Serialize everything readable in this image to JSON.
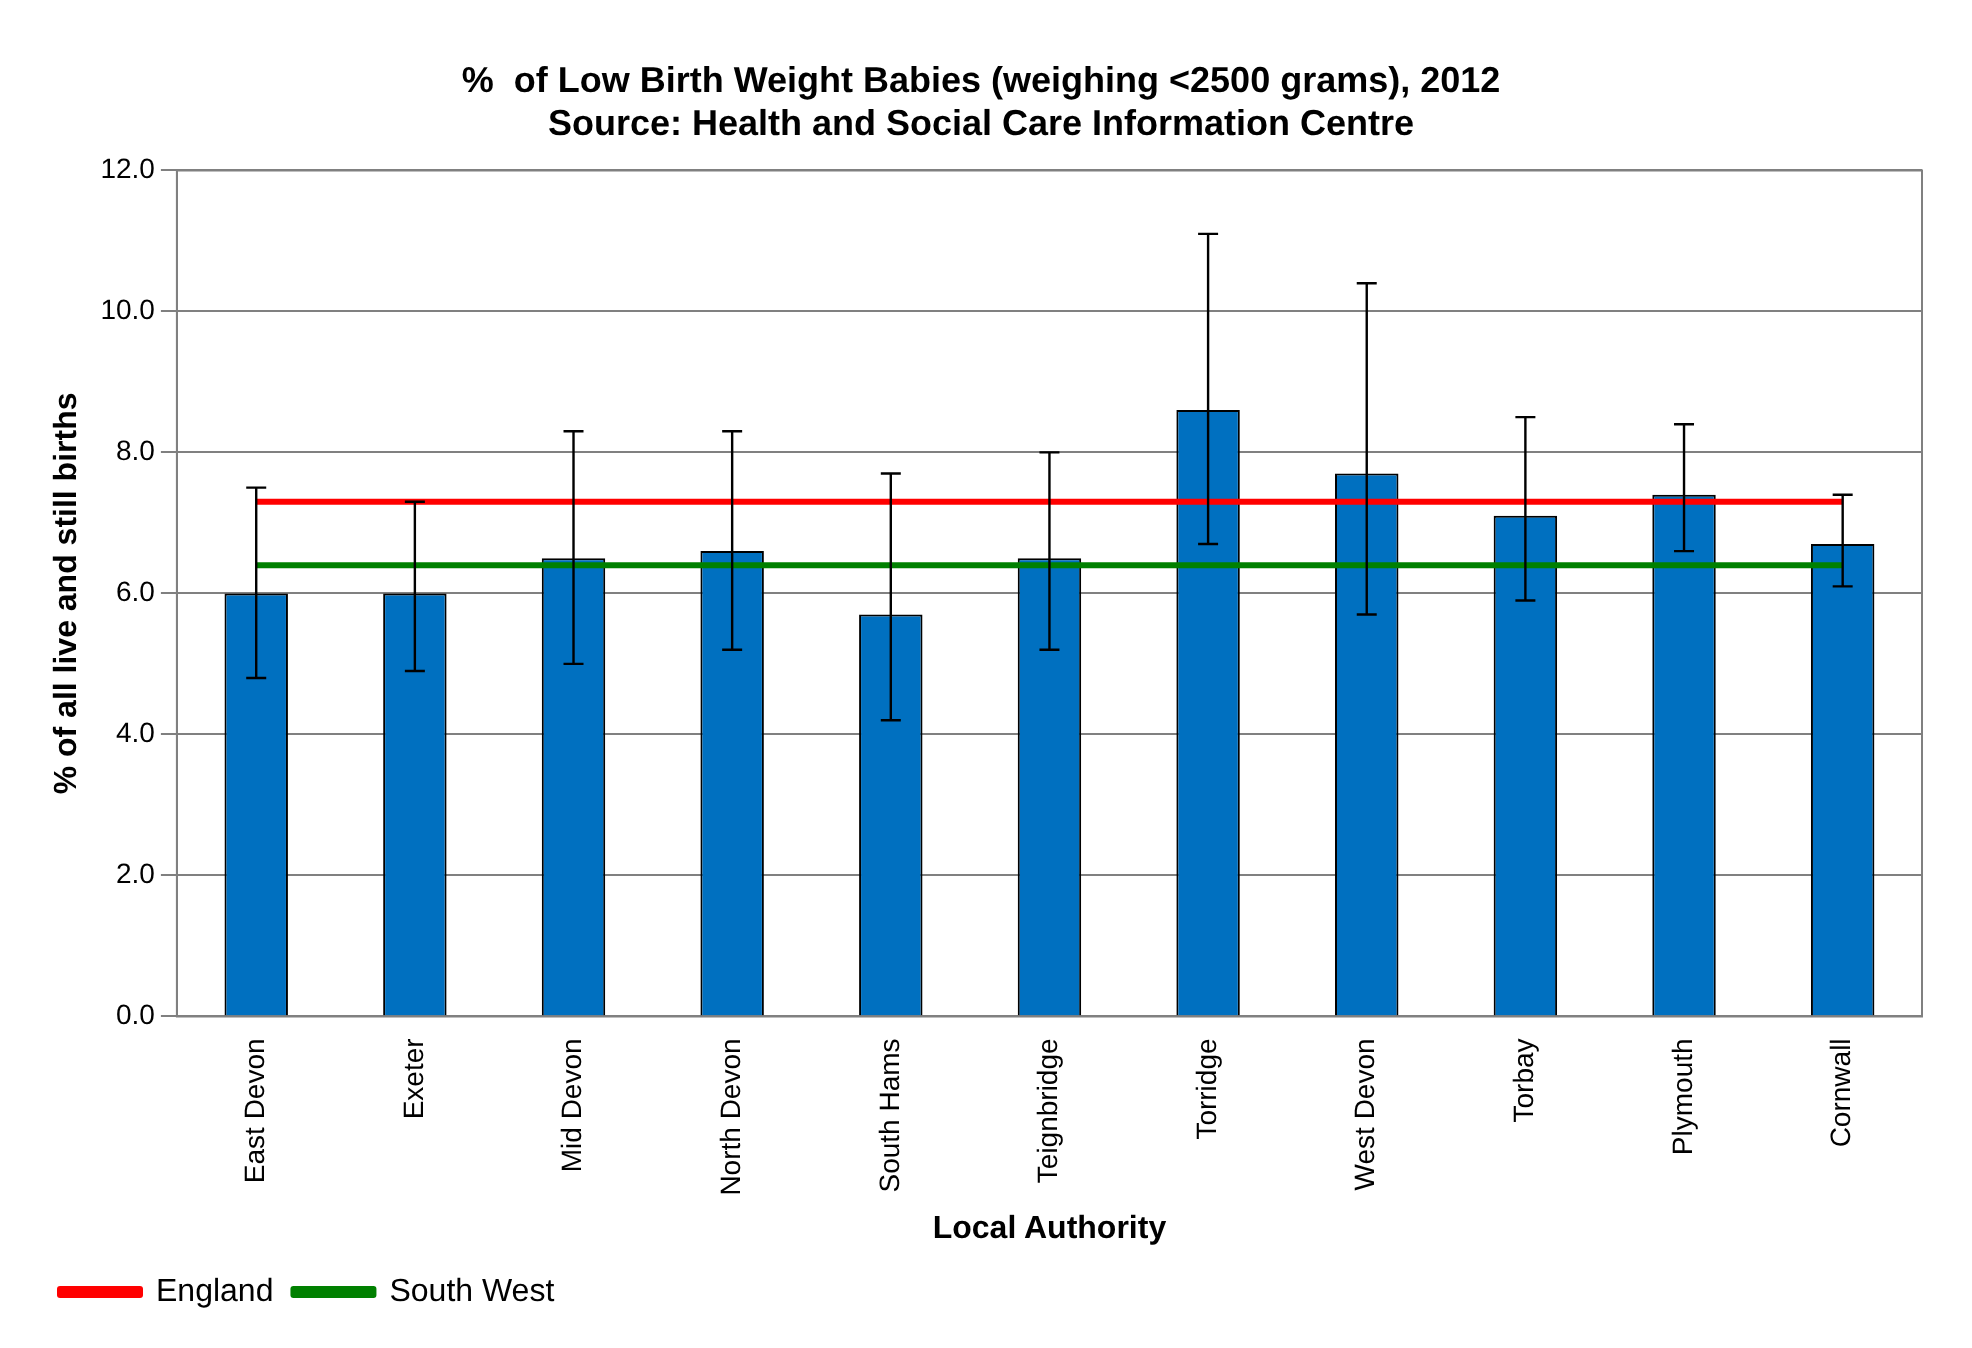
{
  "chart_data": {
    "type": "bar",
    "title": "%  of Low Birth Weight Babies (weighing <2500 grams), 2012",
    "subtitle": "Source: Health and Social Care Information Centre",
    "xlabel": "Local Authority",
    "ylabel": "% of all live and still births",
    "categories": [
      "East Devon",
      "Exeter",
      "Mid Devon",
      "North Devon",
      "South Hams",
      "Teignbridge",
      "Torridge",
      "West Devon",
      "Torbay",
      "Plymouth",
      "Cornwall"
    ],
    "series": [
      {
        "color": "#0070c0",
        "values": [
          6.0,
          6.0,
          6.5,
          6.6,
          5.7,
          6.5,
          8.6,
          7.7,
          7.1,
          7.4,
          6.7
        ],
        "errors": [
          [
            4.8,
            7.5
          ],
          [
            4.9,
            7.3
          ],
          [
            5.0,
            8.3
          ],
          [
            5.2,
            8.3
          ],
          [
            4.2,
            7.7
          ],
          [
            5.2,
            8.0
          ],
          [
            6.7,
            11.1
          ],
          [
            5.7,
            10.4
          ],
          [
            5.9,
            8.5
          ],
          [
            6.6,
            8.4
          ],
          [
            6.1,
            7.4
          ]
        ]
      },
      {
        "type": "line",
        "name": "England",
        "color": "#ff0000",
        "values": [
          7.3,
          7.3,
          7.3,
          7.3,
          7.3,
          7.3,
          7.3,
          7.3,
          7.3,
          7.3,
          7.3
        ]
      },
      {
        "type": "line",
        "name": "South West",
        "color": "#008000",
        "values": [
          6.4,
          6.4,
          6.4,
          6.4,
          6.4,
          6.4,
          6.4,
          6.4,
          6.4,
          6.4,
          6.4
        ]
      }
    ],
    "ylim": [
      0,
      12
    ],
    "yticks": [
      {
        "value": 0,
        "label": "0.0"
      },
      {
        "value": 2,
        "label": "2.0"
      },
      {
        "value": 4,
        "label": "4.0"
      },
      {
        "value": 6,
        "label": "6.0"
      },
      {
        "value": 8,
        "label": "8.0"
      },
      {
        "value": 10,
        "label": "10.0"
      },
      {
        "value": 12,
        "label": "12.0"
      }
    ],
    "grid": "y",
    "legend": "bottom left",
    "marker": "none"
  }
}
